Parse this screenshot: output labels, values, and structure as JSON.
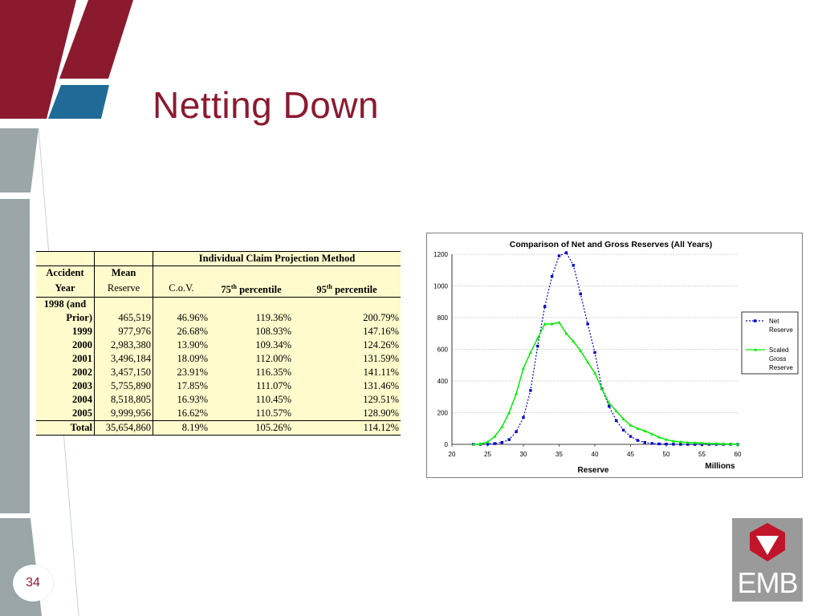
{
  "slide": {
    "title": "Netting Down",
    "page_number": "34",
    "logo_text": "EMB",
    "colors": {
      "maroon": "#8b1a2f",
      "blue": "#1f6a96",
      "gray": "#9aa6a8",
      "table_bg": "#fffbcc"
    }
  },
  "table": {
    "group_header": "Individual Claim Projection Method",
    "col_accident_1": "Accident",
    "col_accident_2": "Year",
    "col_mean_1": "Mean",
    "col_mean_2": "Reserve",
    "col_cov": "C.o.V.",
    "col_p75_num": "75",
    "col_p75_sup": "th",
    "col_p75_word": " percentile",
    "col_p95_num": "95",
    "col_p95_sup": "th",
    "col_p95_word": " percentile",
    "first_year_line1": "1998 (and",
    "rows": [
      {
        "year": "Prior)",
        "mean": "465,519",
        "cov": "46.96%",
        "p75": "119.36%",
        "p95": "200.79%"
      },
      {
        "year": "1999",
        "mean": "977,976",
        "cov": "26.68%",
        "p75": "108.93%",
        "p95": "147.16%"
      },
      {
        "year": "2000",
        "mean": "2,983,380",
        "cov": "13.90%",
        "p75": "109.34%",
        "p95": "124.26%"
      },
      {
        "year": "2001",
        "mean": "3,496,184",
        "cov": "18.09%",
        "p75": "112.00%",
        "p95": "131.59%"
      },
      {
        "year": "2002",
        "mean": "3,457,150",
        "cov": "23.91%",
        "p75": "116.35%",
        "p95": "141.11%"
      },
      {
        "year": "2003",
        "mean": "5,755,890",
        "cov": "17.85%",
        "p75": "111.07%",
        "p95": "131.46%"
      },
      {
        "year": "2004",
        "mean": "8,518,805",
        "cov": "16.93%",
        "p75": "110.45%",
        "p95": "129.51%"
      },
      {
        "year": "2005",
        "mean": "9,999,956",
        "cov": "16.62%",
        "p75": "110.57%",
        "p95": "128.90%"
      }
    ],
    "total": {
      "year": "Total",
      "mean": "35,654,860",
      "cov": "8.19%",
      "p75": "105.26%",
      "p95": "114.12%"
    }
  },
  "chart_data": {
    "type": "line",
    "title": "Comparison of Net and Gross Reserves (All Years)",
    "xlabel": "Reserve",
    "x_unit_label": "Millions",
    "ylabel": "",
    "xlim": [
      20,
      60
    ],
    "ylim": [
      0,
      1200
    ],
    "x_ticks": [
      "20",
      "25",
      "30",
      "35",
      "40",
      "45",
      "50",
      "55",
      "60"
    ],
    "y_ticks": [
      "0",
      "200",
      "400",
      "600",
      "800",
      "1000",
      "1200"
    ],
    "grid": true,
    "legend_position": "right",
    "legend_labels": [
      [
        "Net",
        "Reserve"
      ],
      [
        "Scaled",
        "Gross",
        "Reserve"
      ]
    ],
    "series": [
      {
        "name": "Net Reserve",
        "color": "#0000cc",
        "style": "dotted-square",
        "x": [
          23,
          24,
          25,
          26,
          27,
          28,
          29,
          30,
          31,
          32,
          33,
          34,
          35,
          36,
          37,
          38,
          39,
          40,
          41,
          42,
          43,
          44,
          45,
          46,
          47,
          48,
          49,
          50,
          51,
          52,
          53,
          54,
          55,
          56,
          57,
          58,
          59,
          60
        ],
        "y": [
          0,
          0,
          2,
          5,
          12,
          30,
          80,
          170,
          340,
          620,
          870,
          1060,
          1190,
          1210,
          1130,
          950,
          760,
          580,
          350,
          240,
          150,
          90,
          50,
          25,
          12,
          6,
          3,
          2,
          1,
          0,
          0,
          0,
          0,
          0,
          0,
          0,
          0,
          0
        ]
      },
      {
        "name": "Scaled Gross Reserve",
        "color": "#00ee00",
        "style": "solid-triangle",
        "x": [
          23,
          24,
          25,
          26,
          27,
          28,
          29,
          30,
          31,
          32,
          33,
          34,
          35,
          36,
          37,
          38,
          39,
          40,
          41,
          42,
          43,
          44,
          45,
          46,
          47,
          48,
          49,
          50,
          51,
          52,
          53,
          54,
          55,
          56,
          57,
          58,
          59,
          60
        ],
        "y": [
          0,
          3,
          15,
          50,
          110,
          200,
          320,
          480,
          580,
          670,
          760,
          760,
          770,
          700,
          650,
          590,
          520,
          450,
          350,
          260,
          210,
          160,
          120,
          100,
          85,
          65,
          45,
          30,
          20,
          15,
          12,
          10,
          8,
          6,
          5,
          3,
          2,
          1
        ]
      }
    ]
  }
}
